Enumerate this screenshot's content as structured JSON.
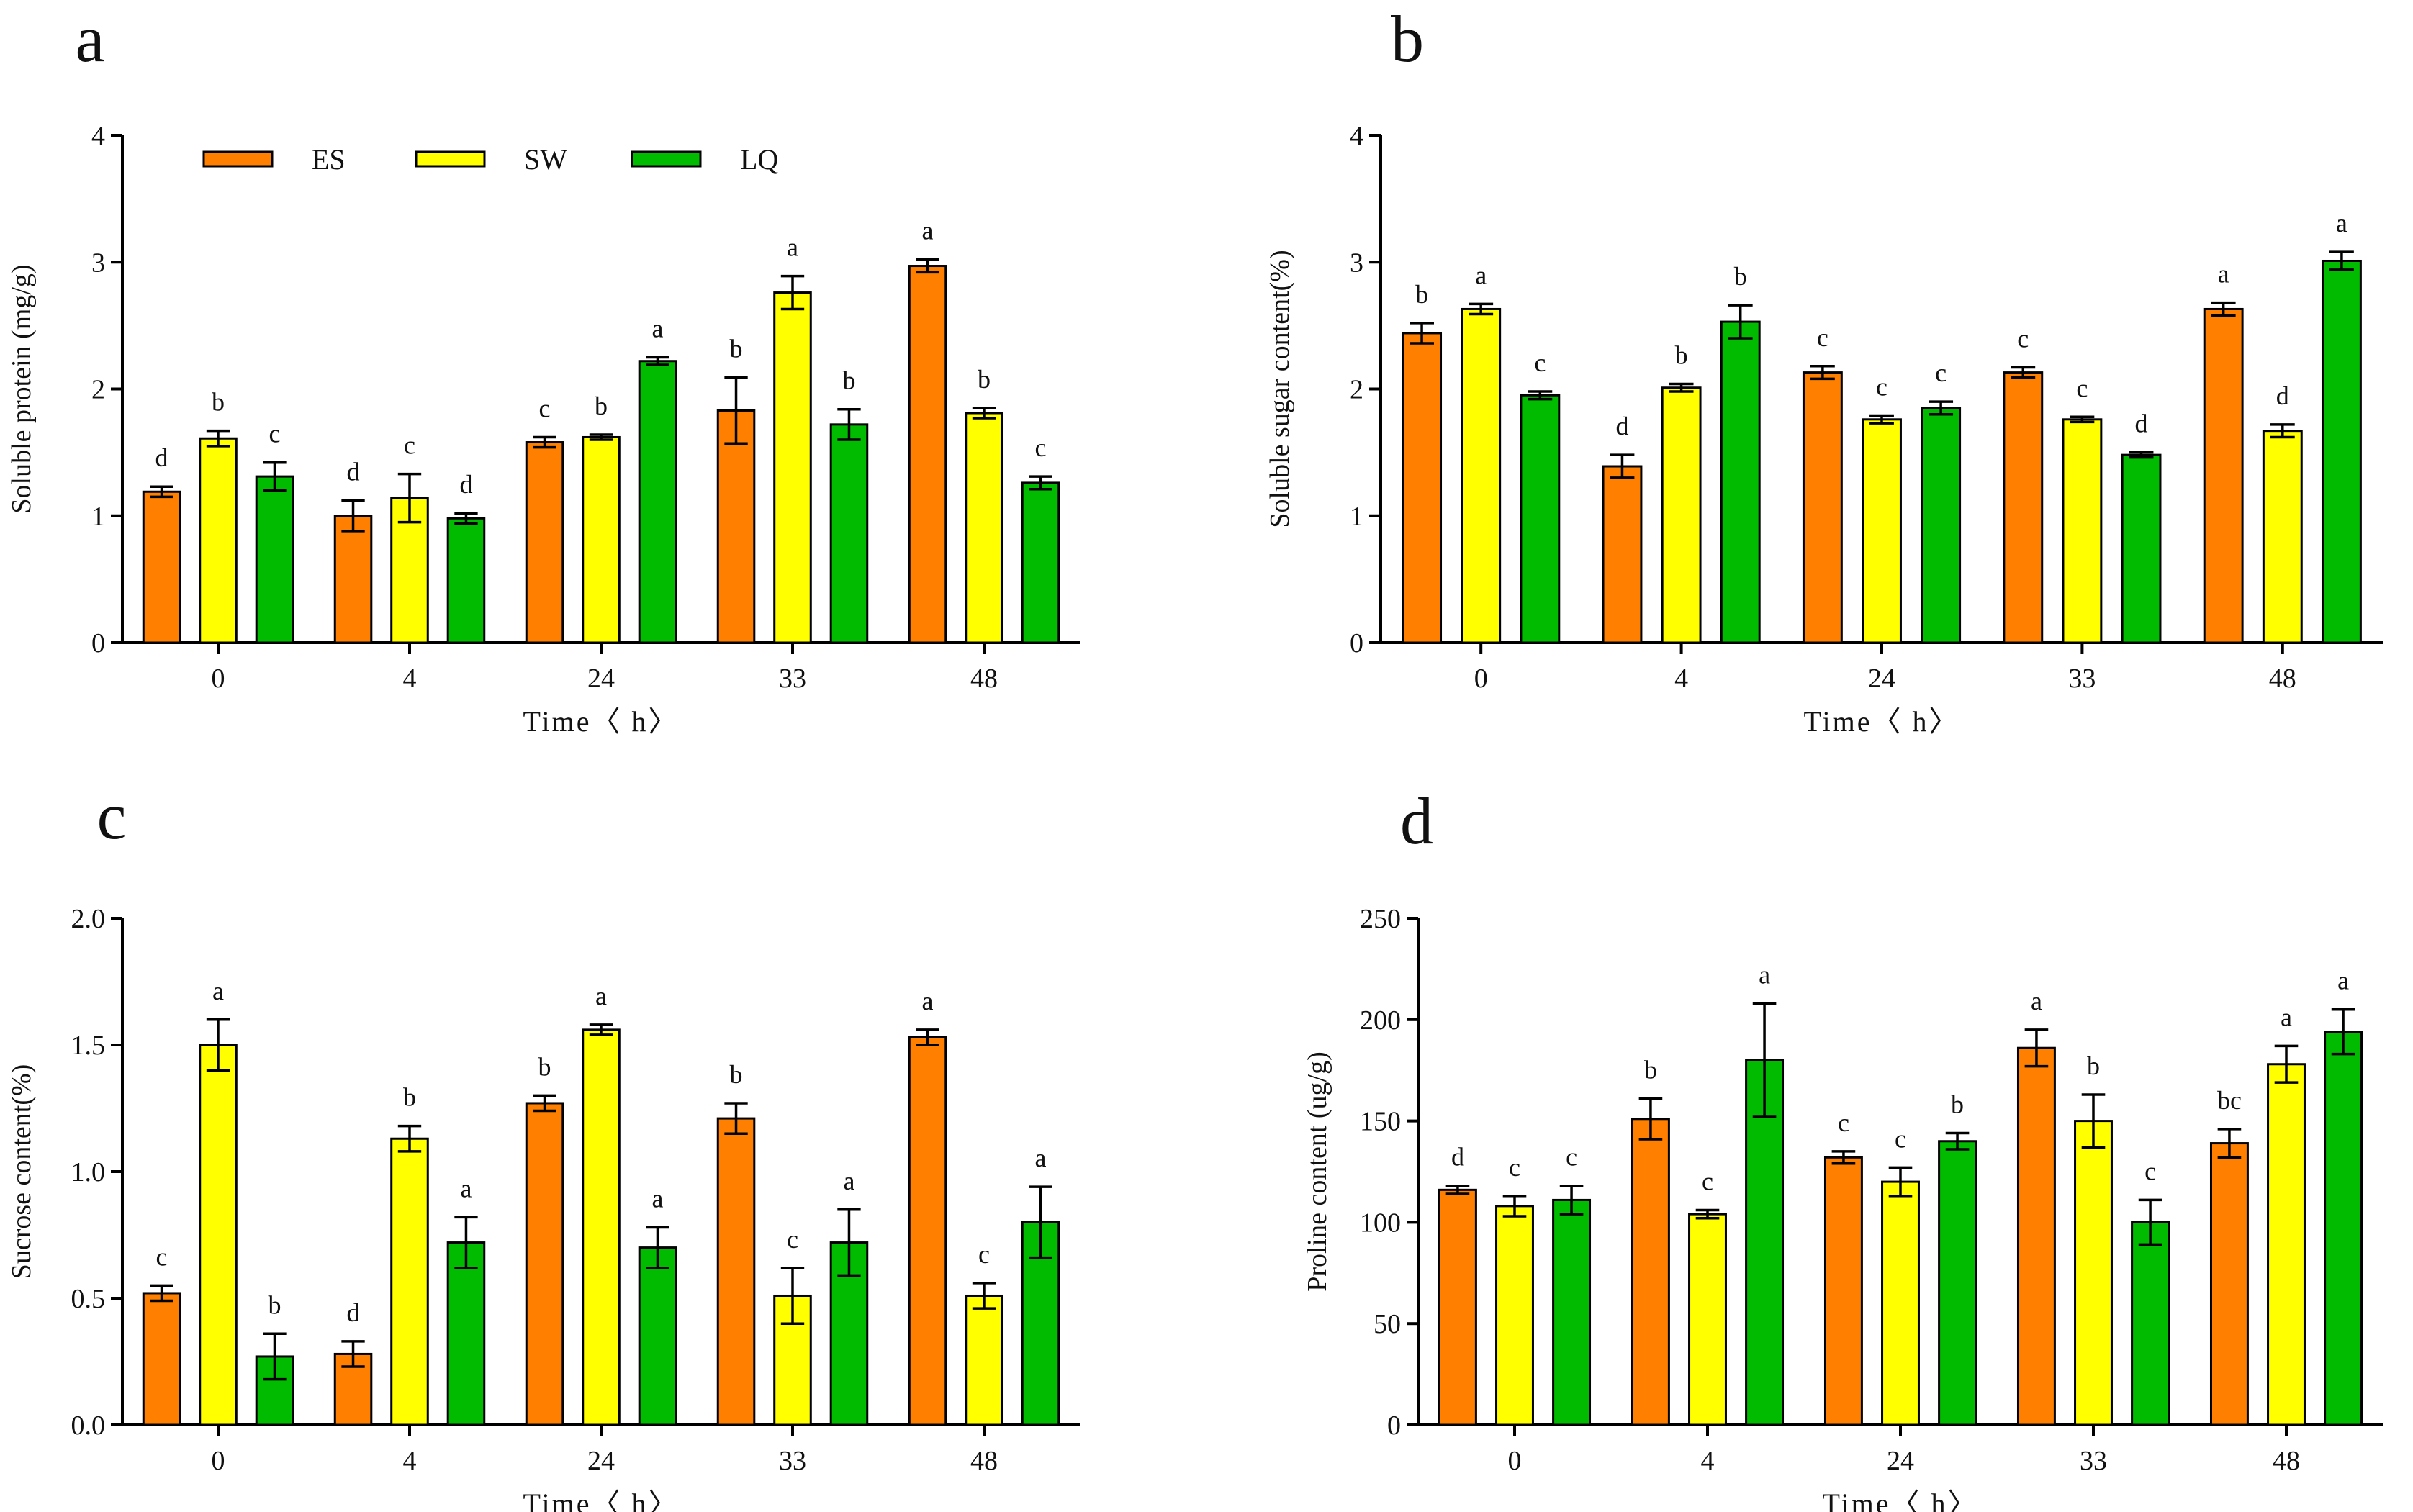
{
  "figure": {
    "colors": {
      "ES": "#FF8000",
      "SW": "#FFFF00",
      "LQ": "#00BB00"
    },
    "series_names": [
      "ES",
      "SW",
      "LQ"
    ]
  },
  "chart_data": [
    {
      "panel_letter": "a",
      "type": "bar",
      "xlabel": "Time〈 h〉",
      "ylabel": "Soluble protein (mg/g)",
      "categories": [
        "0",
        "4",
        "24",
        "33",
        "48"
      ],
      "ylim": [
        0,
        4
      ],
      "yticks": [
        "0",
        "1",
        "2",
        "3",
        "4"
      ],
      "ytick_values": [
        0,
        1,
        2,
        3,
        4
      ],
      "legend": "top-left",
      "series": [
        {
          "name": "ES",
          "values": [
            1.19,
            1.0,
            1.58,
            1.83,
            2.97
          ],
          "errors": [
            0.04,
            0.12,
            0.04,
            0.26,
            0.05
          ],
          "letters": [
            "d",
            "d",
            "c",
            "b",
            "a"
          ]
        },
        {
          "name": "SW",
          "values": [
            1.61,
            1.14,
            1.62,
            2.76,
            1.81
          ],
          "errors": [
            0.06,
            0.19,
            0.02,
            0.13,
            0.04
          ],
          "letters": [
            "b",
            "c",
            "b",
            "a",
            "b"
          ]
        },
        {
          "name": "LQ",
          "values": [
            1.31,
            0.98,
            2.22,
            1.72,
            1.26
          ],
          "errors": [
            0.11,
            0.04,
            0.03,
            0.12,
            0.05
          ],
          "letters": [
            "c",
            "d",
            "a",
            "b",
            "c"
          ]
        }
      ]
    },
    {
      "panel_letter": "b",
      "type": "bar",
      "xlabel": "Time〈 h〉",
      "ylabel": "Soluble sugar content(%)",
      "categories": [
        "0",
        "4",
        "24",
        "33",
        "48"
      ],
      "ylim": [
        0,
        4
      ],
      "yticks": [
        "0",
        "1",
        "2",
        "3",
        "4"
      ],
      "ytick_values": [
        0,
        1,
        2,
        3,
        4
      ],
      "series": [
        {
          "name": "ES",
          "values": [
            2.44,
            1.39,
            2.13,
            2.13,
            2.63
          ],
          "errors": [
            0.08,
            0.09,
            0.05,
            0.04,
            0.05
          ],
          "letters": [
            "b",
            "d",
            "c",
            "c",
            "a"
          ]
        },
        {
          "name": "SW",
          "values": [
            2.63,
            2.01,
            1.76,
            1.76,
            1.67
          ],
          "errors": [
            0.04,
            0.03,
            0.03,
            0.02,
            0.05
          ],
          "letters": [
            "a",
            "b",
            "c",
            "c",
            "d"
          ]
        },
        {
          "name": "LQ",
          "values": [
            1.95,
            2.53,
            1.85,
            1.48,
            3.01
          ],
          "errors": [
            0.03,
            0.13,
            0.05,
            0.02,
            0.07
          ],
          "letters": [
            "c",
            "b",
            "c",
            "d",
            "a"
          ]
        }
      ]
    },
    {
      "panel_letter": "c",
      "type": "bar",
      "xlabel": "Time〈 h〉",
      "ylabel": "Sucrose content(%)",
      "categories": [
        "0",
        "4",
        "24",
        "33",
        "48"
      ],
      "ylim": [
        0,
        2
      ],
      "yticks": [
        "0.0",
        "0.5",
        "1.0",
        "1.5",
        "2.0"
      ],
      "ytick_values": [
        0,
        0.5,
        1.0,
        1.5,
        2.0
      ],
      "series": [
        {
          "name": "ES",
          "values": [
            0.52,
            0.28,
            1.27,
            1.21,
            1.53
          ],
          "errors": [
            0.03,
            0.05,
            0.03,
            0.06,
            0.03
          ],
          "letters": [
            "c",
            "d",
            "b",
            "b",
            "a"
          ]
        },
        {
          "name": "SW",
          "values": [
            1.5,
            1.13,
            1.56,
            0.51,
            0.51
          ],
          "errors": [
            0.1,
            0.05,
            0.02,
            0.11,
            0.05
          ],
          "letters": [
            "a",
            "b",
            "a",
            "c",
            "c"
          ]
        },
        {
          "name": "LQ",
          "values": [
            0.27,
            0.72,
            0.7,
            0.72,
            0.8
          ],
          "errors": [
            0.09,
            0.1,
            0.08,
            0.13,
            0.14
          ],
          "letters": [
            "b",
            "a",
            "a",
            "a",
            "a"
          ]
        }
      ]
    },
    {
      "panel_letter": "d",
      "type": "bar",
      "xlabel": "Time〈 h〉",
      "ylabel": "Proline content (ug/g)",
      "categories": [
        "0",
        "4",
        "24",
        "33",
        "48"
      ],
      "ylim": [
        0,
        250
      ],
      "yticks": [
        "0",
        "50",
        "100",
        "150",
        "200",
        "250"
      ],
      "ytick_values": [
        0,
        50,
        100,
        150,
        200,
        250
      ],
      "series": [
        {
          "name": "ES",
          "values": [
            116,
            151,
            132,
            186,
            139
          ],
          "errors": [
            2,
            10,
            3,
            9,
            7
          ],
          "letters": [
            "d",
            "b",
            "c",
            "a",
            "bc"
          ]
        },
        {
          "name": "SW",
          "values": [
            108,
            104,
            120,
            150,
            178
          ],
          "errors": [
            5,
            2,
            7,
            13,
            9
          ],
          "letters": [
            "c",
            "c",
            "c",
            "b",
            "a"
          ]
        },
        {
          "name": "LQ",
          "values": [
            111,
            180,
            140,
            100,
            194
          ],
          "errors": [
            7,
            28,
            4,
            11,
            11
          ],
          "letters": [
            "c",
            "a",
            "b",
            "c",
            "a"
          ]
        }
      ]
    }
  ]
}
